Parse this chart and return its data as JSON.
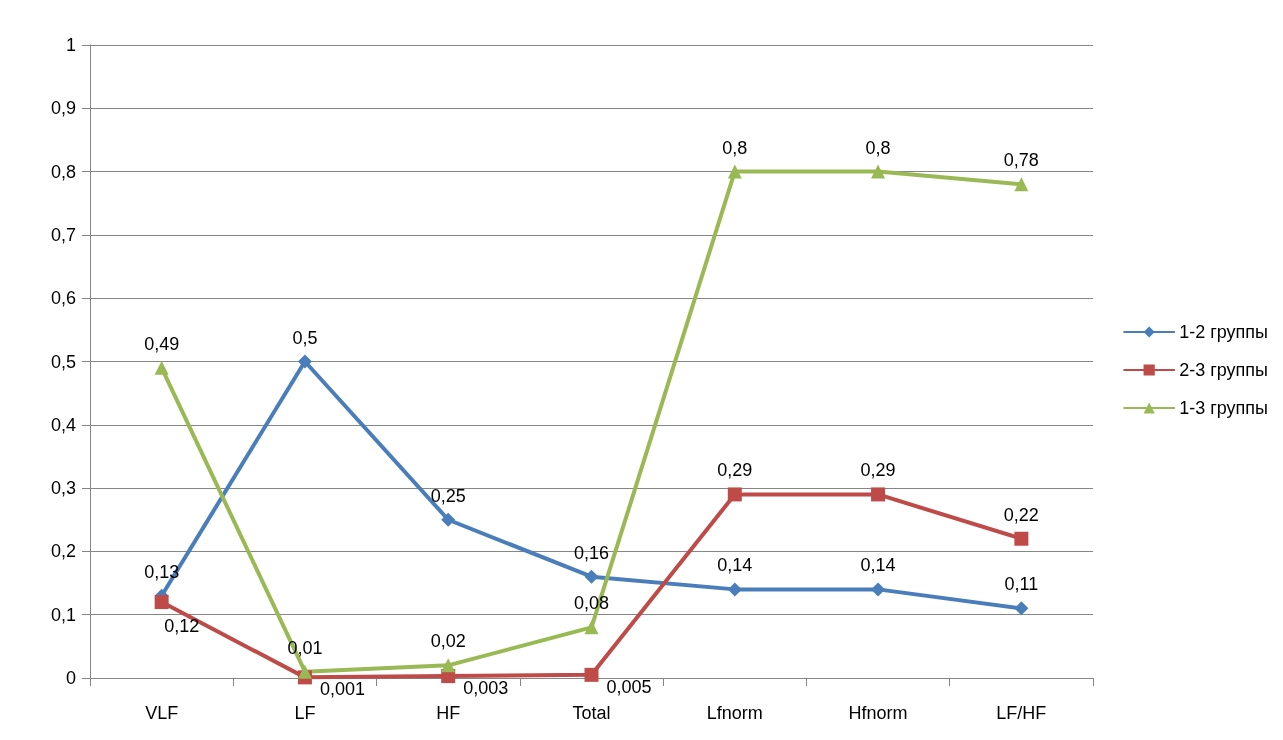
{
  "chart_data": {
    "type": "line",
    "categories": [
      "VLF",
      "LF",
      "HF",
      "Total",
      "Lfnorm",
      "Hfnorm",
      "LF/HF"
    ],
    "series": [
      {
        "name": "1-2 группы",
        "color": "#4a7ebb",
        "marker": "diamond",
        "values": [
          0.13,
          0.5,
          0.25,
          0.16,
          0.14,
          0.14,
          0.11
        ],
        "value_labels": [
          "0,13",
          "0,5",
          "0,25",
          "0,16",
          "0,14",
          "0,14",
          "0,11"
        ]
      },
      {
        "name": "2-3 группы",
        "color": "#be4b48",
        "marker": "square",
        "values": [
          0.12,
          0.001,
          0.003,
          0.005,
          0.29,
          0.29,
          0.22
        ],
        "value_labels": [
          "0,12",
          "0,001",
          "0,003",
          "0,005",
          "0,29",
          "0,29",
          "0,22"
        ]
      },
      {
        "name": "1-3 группы",
        "color": "#98b954",
        "marker": "triangle",
        "values": [
          0.49,
          0.01,
          0.02,
          0.08,
          0.8,
          0.8,
          0.78
        ],
        "value_labels": [
          "0,49",
          "0,01",
          "0,02",
          "0,08",
          "0,8",
          "0,8",
          "0,78"
        ]
      }
    ],
    "ylim": [
      0,
      1
    ],
    "yticks": [
      0,
      {
        "value": 0.1,
        "label": "0,1"
      },
      {
        "value": 0.2,
        "label": "0,2"
      },
      {
        "value": 0.3,
        "label": "0,3"
      },
      {
        "value": 0.4,
        "label": "0,4"
      },
      {
        "value": 0.5,
        "label": "0,5"
      },
      {
        "value": 0.6,
        "label": "0,6"
      },
      {
        "value": 0.7,
        "label": "0,7"
      },
      {
        "value": 0.8,
        "label": "0,8"
      },
      {
        "value": 0.9,
        "label": "0,9"
      },
      1
    ],
    "grid": "y",
    "legend": "right",
    "line_style": "solid"
  }
}
